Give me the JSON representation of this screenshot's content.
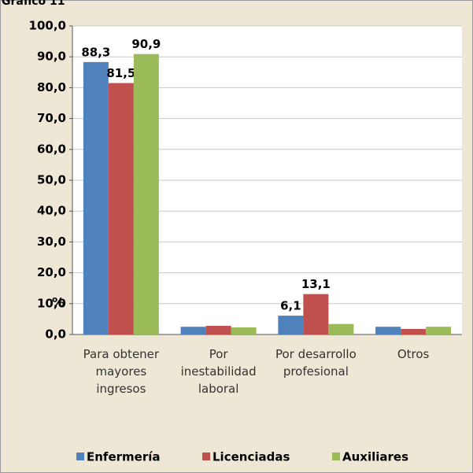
{
  "chart_data": {
    "type": "bar",
    "title": "Gráfico 11",
    "y_axis_label": "%",
    "categories": [
      "Para obtener mayores ingresos",
      "Por inestabilidad laboral",
      "Por desarrollo profesional",
      "Otros"
    ],
    "series": [
      {
        "name": "Enfermería",
        "color": "#4f81bd",
        "values": [
          88.3,
          2.5,
          6.1,
          2.5
        ],
        "value_labels": [
          "88,3",
          null,
          "6,1",
          null
        ]
      },
      {
        "name": "Licenciadas",
        "color": "#c0504d",
        "values": [
          81.5,
          2.8,
          13.1,
          1.8
        ],
        "value_labels": [
          "81,5",
          null,
          "13,1",
          null
        ]
      },
      {
        "name": "Auxiliares",
        "color": "#9bbb59",
        "values": [
          90.9,
          2.3,
          3.4,
          2.5
        ],
        "value_labels": [
          "90,9",
          null,
          null,
          null
        ]
      }
    ],
    "ylim": [
      0,
      100
    ],
    "yticks": [
      {
        "value": 0,
        "label": "0,0"
      },
      {
        "value": 10,
        "label": "10,0"
      },
      {
        "value": 20,
        "label": "20,0"
      },
      {
        "value": 30,
        "label": "30,0"
      },
      {
        "value": 40,
        "label": "40,0"
      },
      {
        "value": 50,
        "label": "50,0"
      },
      {
        "value": 60,
        "label": "60,0"
      },
      {
        "value": 70,
        "label": "70,0"
      },
      {
        "value": 80,
        "label": "80,0"
      },
      {
        "value": 90,
        "label": "90,0"
      },
      {
        "value": 100,
        "label": "100,0"
      }
    ],
    "grid": true,
    "legend": "bottom"
  }
}
